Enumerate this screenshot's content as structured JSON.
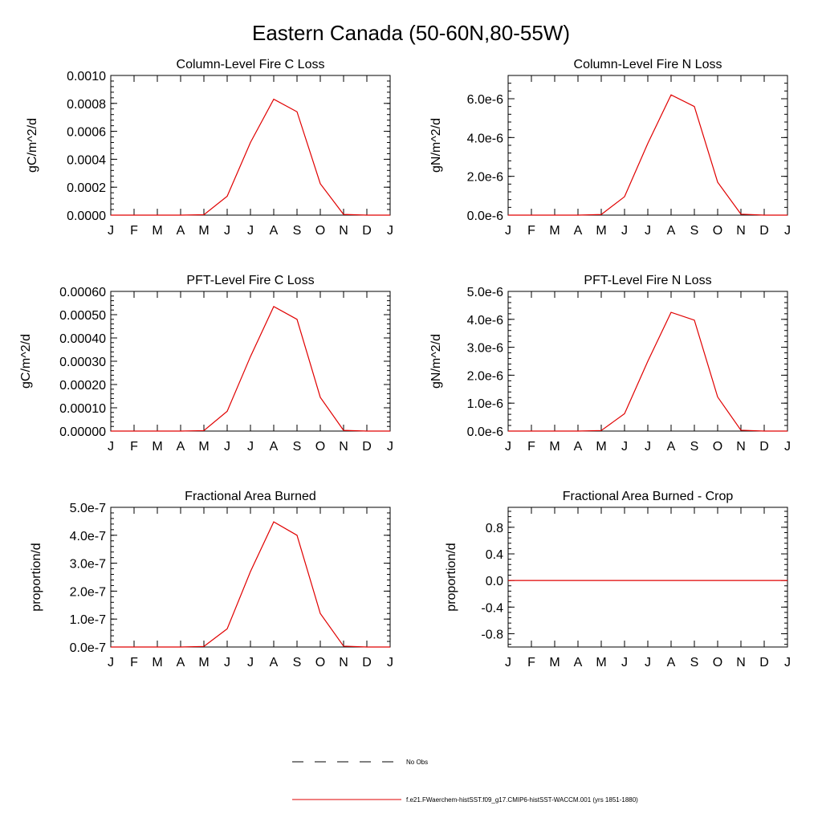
{
  "figure": {
    "title": "Eastern Canada (50-60N,80-55W)",
    "line_color": "#e00000"
  },
  "months": [
    "J",
    "F",
    "M",
    "A",
    "M",
    "J",
    "J",
    "A",
    "S",
    "O",
    "N",
    "D",
    "J"
  ],
  "legend": {
    "entries": [
      {
        "label": "No Obs",
        "style": "dashed",
        "color": "#000000"
      },
      {
        "label": "f.e21.FWaerchem-histSST.f09_g17.CMIP6-histSST-WACCM.001 (yrs 1851-1880)",
        "style": "solid",
        "color": "#e00000"
      }
    ]
  },
  "chart_data": [
    {
      "type": "line",
      "title": "Column-Level Fire C Loss",
      "ylabel": "gC/m^2/d",
      "ylim": [
        0,
        0.001
      ],
      "yticks": [
        0,
        0.0002,
        0.0004,
        0.0006,
        0.0008,
        0.001
      ],
      "yticklabels": [
        "0.0000",
        "0.0002",
        "0.0004",
        "0.0006",
        "0.0008",
        "0.0010"
      ],
      "series": [
        {
          "values": [
            0,
            0,
            0,
            0,
            3e-06,
            0.000135,
            0.00052,
            0.00083,
            0.00074,
            0.000225,
            5e-06,
            0,
            0
          ]
        }
      ]
    },
    {
      "type": "line",
      "title": "Column-Level Fire N Loss",
      "ylabel": "gN/m^2/d",
      "ylim": [
        0,
        7.2e-06
      ],
      "yticks": [
        0,
        2e-06,
        4e-06,
        6e-06
      ],
      "yticklabels": [
        "0.0e-6",
        "2.0e-6",
        "4.0e-6",
        "6.0e-6"
      ],
      "series": [
        {
          "values": [
            0,
            0,
            0,
            0,
            3e-08,
            9.5e-07,
            3.7e-06,
            6.2e-06,
            5.6e-06,
            1.7e-06,
            5e-08,
            0,
            0
          ]
        }
      ]
    },
    {
      "type": "line",
      "title": "PFT-Level Fire C Loss",
      "ylabel": "gC/m^2/d",
      "ylim": [
        0,
        0.0006
      ],
      "yticks": [
        0,
        0.0001,
        0.0002,
        0.0003,
        0.0004,
        0.0005,
        0.0006
      ],
      "yticklabels": [
        "0.00000",
        "0.00010",
        "0.00020",
        "0.00030",
        "0.00040",
        "0.00050",
        "0.00060"
      ],
      "series": [
        {
          "values": [
            0,
            0,
            0,
            0,
            2e-06,
            8.5e-05,
            0.00032,
            0.000535,
            0.00048,
            0.000145,
            3e-06,
            0,
            0
          ]
        }
      ]
    },
    {
      "type": "line",
      "title": "PFT-Level Fire N Loss",
      "ylabel": "gN/m^2/d",
      "ylim": [
        0,
        5e-06
      ],
      "yticks": [
        0,
        1e-06,
        2e-06,
        3e-06,
        4e-06,
        5e-06
      ],
      "yticklabels": [
        "0.0e-6",
        "1.0e-6",
        "2.0e-6",
        "3.0e-6",
        "4.0e-6",
        "5.0e-6"
      ],
      "series": [
        {
          "values": [
            0,
            0,
            0,
            0,
            2e-08,
            6.2e-07,
            2.5e-06,
            4.25e-06,
            3.97e-06,
            1.22e-06,
            3e-08,
            0,
            0
          ]
        }
      ]
    },
    {
      "type": "line",
      "title": "Fractional Area Burned",
      "ylabel": "proportion/d",
      "ylim": [
        0,
        5e-07
      ],
      "yticks": [
        0,
        1e-07,
        2e-07,
        3e-07,
        4e-07,
        5e-07
      ],
      "yticklabels": [
        "0.0e-7",
        "1.0e-7",
        "2.0e-7",
        "3.0e-7",
        "4.0e-7",
        "5.0e-7"
      ],
      "series": [
        {
          "values": [
            0,
            0,
            0,
            0,
            2e-09,
            6.5e-08,
            2.7e-07,
            4.48e-07,
            4e-07,
            1.2e-07,
            3e-09,
            0,
            0
          ]
        }
      ]
    },
    {
      "type": "line",
      "title": "Fractional Area Burned - Crop",
      "ylabel": "proportion/d",
      "ylim": [
        -1,
        1.1
      ],
      "yticks": [
        -0.8,
        -0.4,
        0,
        0.4,
        0.8
      ],
      "yticklabels": [
        "-0.8",
        "-0.4",
        "0.0",
        "0.4",
        "0.8"
      ],
      "series": [
        {
          "values": [
            0,
            0,
            0,
            0,
            0,
            0,
            0,
            0,
            0,
            0,
            0,
            0,
            0
          ]
        }
      ]
    }
  ]
}
